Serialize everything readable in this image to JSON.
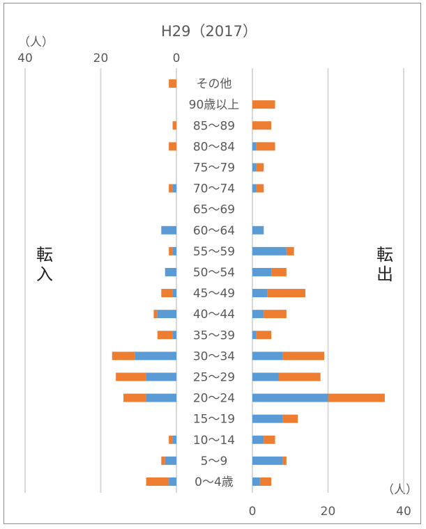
{
  "chart_data": {
    "type": "bar",
    "title": "H29（2017）",
    "left_unit": "（人）",
    "right_unit": "（人）",
    "left_side_label": "転入",
    "right_side_label": "転出",
    "categories": [
      "その他",
      "90歳以上",
      "85～89",
      "80～84",
      "75～79",
      "70～74",
      "65～69",
      "60～64",
      "55～59",
      "50～54",
      "45～49",
      "40～44",
      "35～39",
      "30～34",
      "25～29",
      "20～24",
      "15～19",
      "10～14",
      "5～9",
      "0～4歳"
    ],
    "left_ticks": [
      "40",
      "20",
      "0"
    ],
    "right_ticks": [
      "0",
      "20",
      "40"
    ],
    "xlim": [
      0,
      40
    ],
    "colors": {
      "series1": "#5b9bd5",
      "series2": "#ed7d31",
      "grid": "#d9d9d9"
    },
    "panels": {
      "in": {
        "series": [
          {
            "values": [
              0,
              0,
              0,
              0,
              0,
              1,
              0,
              4,
              1,
              3,
              1,
              5,
              1,
              11,
              8,
              8,
              0,
              1,
              3,
              2
            ]
          },
          {
            "values": [
              2,
              0,
              1,
              2,
              0,
              1,
              0,
              0,
              1,
              0,
              3,
              1,
              4,
              6,
              8,
              6,
              0,
              1,
              1,
              6
            ]
          }
        ]
      },
      "out": {
        "series": [
          {
            "values": [
              0,
              0,
              0,
              1,
              1,
              1,
              0,
              3,
              9,
              5,
              4,
              3,
              1,
              8,
              7,
              20,
              8,
              3,
              8,
              2
            ]
          },
          {
            "values": [
              0,
              6,
              5,
              5,
              2,
              2,
              0,
              0,
              2,
              4,
              10,
              6,
              4,
              11,
              11,
              15,
              4,
              3,
              1,
              3
            ]
          }
        ]
      }
    }
  }
}
